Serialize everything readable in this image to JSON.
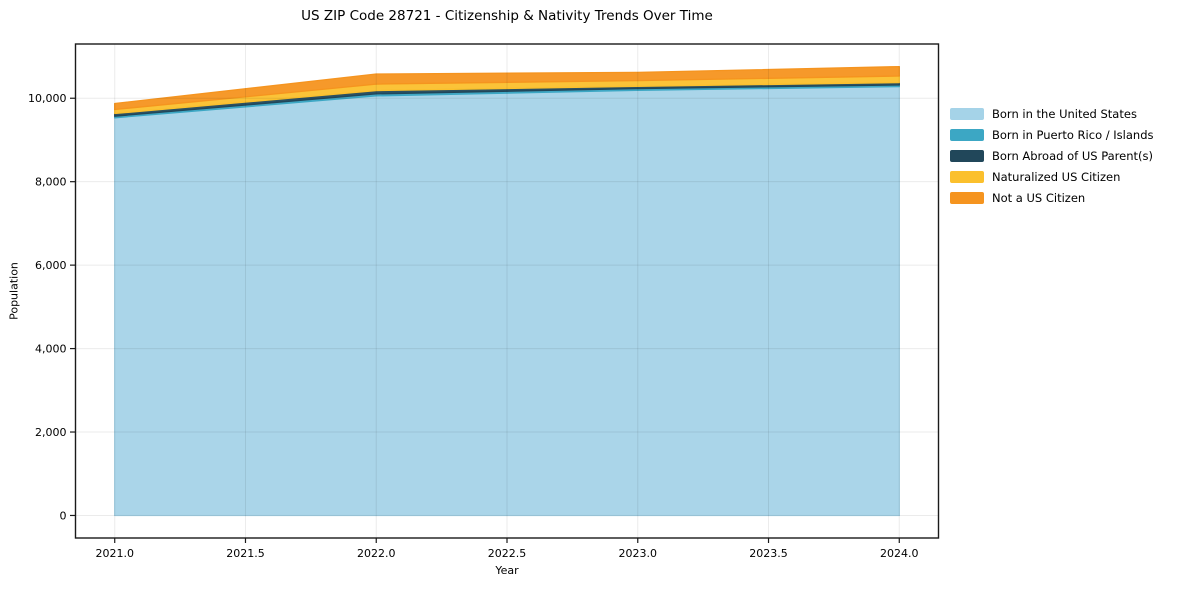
{
  "title": "US ZIP Code 28721 - Citizenship & Nativity Trends Over Time",
  "chart_data": {
    "type": "area",
    "stacked": true,
    "title": "US ZIP Code 28721 - Citizenship & Nativity Trends Over Time",
    "xlabel": "Year",
    "ylabel": "Population",
    "x": [
      2021,
      2022,
      2023,
      2024
    ],
    "series": [
      {
        "name": "Born in the United States",
        "color": "#a5d3e8",
        "values": [
          9530,
          10055,
          10190,
          10280
        ]
      },
      {
        "name": "Born in Puerto Rico / Islands",
        "color": "#3ca7c4",
        "values": [
          40,
          48,
          41,
          38
        ]
      },
      {
        "name": "Born Abroad of US Parent(s)",
        "color": "#21475a",
        "values": [
          65,
          80,
          54,
          58
        ]
      },
      {
        "name": "Naturalized US Citizen",
        "color": "#fbc02d",
        "values": [
          95,
          157,
          137,
          157
        ]
      },
      {
        "name": "Not a US Citizen",
        "color": "#f5941f",
        "values": [
          145,
          240,
          197,
          225
        ]
      }
    ],
    "totals": [
      9875,
      10580,
      10619,
      10758
    ],
    "xlim": [
      2020.85,
      2024.15
    ],
    "ylim": [
      -540,
      11300
    ],
    "xticks": [
      "2021.0",
      "2021.5",
      "2022.0",
      "2022.5",
      "2023.0",
      "2023.5",
      "2024.0"
    ],
    "xtick_values": [
      2021.0,
      2021.5,
      2022.0,
      2022.5,
      2023.0,
      2023.5,
      2024.0
    ],
    "yticks": [
      "0",
      "2,000",
      "4,000",
      "6,000",
      "8,000",
      "10,000"
    ],
    "ytick_values": [
      0,
      2000,
      4000,
      6000,
      8000,
      10000
    ],
    "grid": true,
    "grid_color": "#e8e8e8",
    "spine_color": "#1a1a1a",
    "legend_position": "outside-right",
    "background": "#ffffff"
  }
}
